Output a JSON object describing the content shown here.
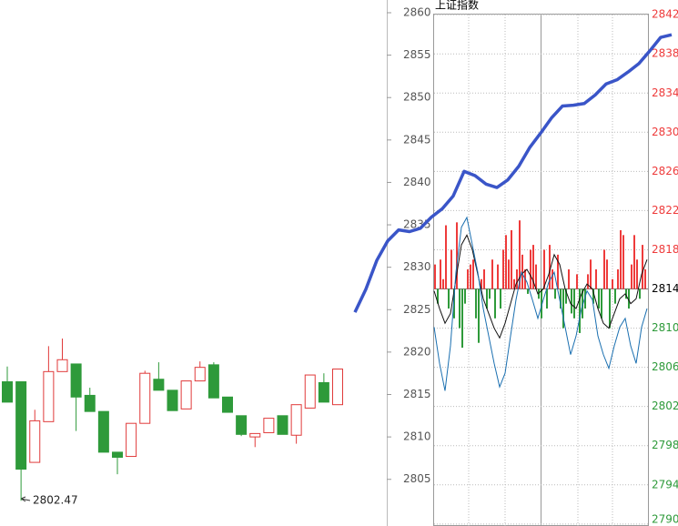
{
  "chart_data": [
    {
      "type": "candlestick",
      "open": [
        2816.5,
        2816.5,
        2807.0,
        2811.8,
        2817.7,
        2818.6,
        2814.9,
        2813.0,
        2808.2,
        2807.7,
        2811.6,
        2816.8,
        2815.5,
        2813.3,
        2816.6,
        2818.5,
        2814.7,
        2812.5,
        2810.0,
        2810.5,
        2812.5,
        2810.2,
        2813.4,
        2816.4,
        2813.8
      ],
      "high": [
        2818.3,
        2816.5,
        2813.2,
        2820.7,
        2821.6,
        2818.6,
        2815.8,
        2813.0,
        2808.2,
        2811.6,
        2817.8,
        2818.8,
        2815.5,
        2816.6,
        2818.9,
        2818.8,
        2814.7,
        2812.5,
        2810.4,
        2812.2,
        2812.5,
        2813.8,
        2817.3,
        2817.5,
        2818.0
      ],
      "low": [
        2814.1,
        2802.47,
        2807.0,
        2811.8,
        2817.7,
        2810.7,
        2813.0,
        2808.2,
        2805.6,
        2807.7,
        2811.6,
        2815.5,
        2813.1,
        2813.3,
        2816.6,
        2814.6,
        2812.9,
        2810.1,
        2808.8,
        2810.5,
        2810.3,
        2809.2,
        2813.4,
        2814.1,
        2813.8
      ],
      "close": [
        2814.1,
        2806.2,
        2811.9,
        2817.7,
        2819.1,
        2814.7,
        2813.0,
        2808.2,
        2807.6,
        2811.6,
        2817.5,
        2815.5,
        2813.1,
        2816.6,
        2818.2,
        2814.6,
        2812.9,
        2810.3,
        2810.4,
        2812.2,
        2810.3,
        2813.8,
        2817.3,
        2814.1,
        2818.0
      ],
      "up_color": "#e03a3a",
      "down_color": "#2e9a3a",
      "ylim": [
        2799.5,
        2861.5
      ]
    },
    {
      "type": "line",
      "values": [
        2824.7,
        2827.4,
        2830.8,
        2833.1,
        2834.4,
        2834.2,
        2834.6,
        2835.9,
        2836.9,
        2838.4,
        2841.3,
        2840.8,
        2839.8,
        2839.4,
        2840.3,
        2841.9,
        2844.1,
        2845.8,
        2847.6,
        2849.0,
        2849.1,
        2849.3,
        2850.3,
        2851.6,
        2852.1,
        2853.0,
        2854.0,
        2855.5,
        2857.1,
        2857.4
      ],
      "color": "#3a55c8",
      "ylim": [
        2799.5,
        2861.5
      ],
      "yticks": [
        2805,
        2810,
        2815,
        2820,
        2825,
        2830,
        2835,
        2840,
        2845,
        2850,
        2855,
        2860
      ]
    },
    {
      "type": "intraday",
      "title": "上证指数",
      "baseline": 2814,
      "bars": [
        2.5,
        -1.5,
        3,
        1,
        6.5,
        -2,
        4,
        -3,
        6.8,
        -4,
        -6,
        -1.5,
        2,
        2.5,
        3,
        -3,
        -5.5,
        1,
        2,
        -2,
        -1,
        3,
        -3,
        2.5,
        -2,
        4,
        5.5,
        3,
        6,
        1,
        2,
        7,
        3.5,
        2,
        -0.5,
        4,
        4.5,
        2.5,
        -1,
        -3,
        4,
        -2,
        4.5,
        2,
        -1,
        3.5,
        -2,
        -4,
        -1.5,
        2,
        -2.5,
        -3,
        1.5,
        -4.5,
        -3,
        -2,
        1.5,
        3,
        -1.5,
        2,
        -2,
        -3,
        4,
        3,
        -4,
        1,
        -1.5,
        2,
        6,
        5.5,
        -1,
        -2,
        2.5,
        5.5,
        3,
        -1,
        4.5,
        2
      ],
      "up_color": "#ee3b3b",
      "down_color": "#2e9a3a",
      "series": [
        {
          "color": "#111111",
          "values": [
            2813.8,
            2812.0,
            2810.5,
            2811.5,
            2815.0,
            2818.5,
            2819.5,
            2818.0,
            2815.5,
            2813.0,
            2811.5,
            2810.0,
            2809.0,
            2810.5,
            2812.5,
            2814.5,
            2815.5,
            2816.0,
            2815.0,
            2813.5,
            2814.0,
            2815.5,
            2817.5,
            2816.5,
            2814.0,
            2812.5,
            2812.0,
            2813.5,
            2814.5,
            2814.0,
            2812.0,
            2810.5,
            2810.0,
            2811.5,
            2813.0,
            2813.5,
            2812.5,
            2813.0,
            2815.5,
            2817.0
          ]
        },
        {
          "color": "#1a6fb0",
          "values": [
            2810.1,
            2806.4,
            2803.6,
            2808.2,
            2815.7,
            2820.3,
            2821.3,
            2818.5,
            2815.7,
            2812.0,
            2809.2,
            2806.4,
            2804.0,
            2805.4,
            2809.2,
            2812.9,
            2815.7,
            2814.7,
            2812.9,
            2811.0,
            2812.9,
            2814.7,
            2815.7,
            2812.9,
            2810.1,
            2807.3,
            2809.2,
            2812.0,
            2813.8,
            2812.9,
            2809.2,
            2807.3,
            2805.9,
            2808.2,
            2810.1,
            2811.0,
            2808.2,
            2806.4,
            2810.1,
            2812.0
          ]
        }
      ],
      "y2lim": [
        2789.8,
        2843.5
      ],
      "y2ticks": [
        2790,
        2794,
        2798,
        2802,
        2806,
        2810,
        2814,
        2818,
        2822,
        2826,
        2830,
        2834,
        2838,
        2842
      ],
      "grid": true
    }
  ]
}
